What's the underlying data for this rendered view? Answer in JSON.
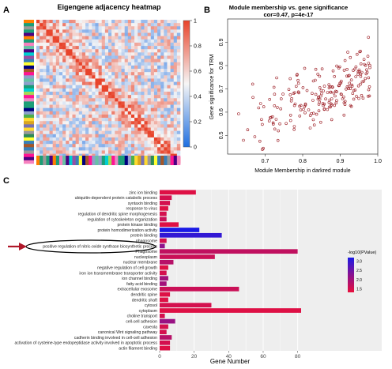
{
  "panels": {
    "a": {
      "letter": "A",
      "title": "Eigengene adjacency heatmap",
      "colorbar_ticks": [
        "1",
        "0.8",
        "0.6",
        "0.4",
        "0.2",
        "0"
      ],
      "colors": {
        "low": "#1f6fe0",
        "mid": "#f4f4f4",
        "high": "#e8432a"
      }
    },
    "b": {
      "letter": "B",
      "title": "Module membership vs. gene significance",
      "subtitle": "cor=0.47, p=4e-17",
      "xlabel": "Module Membership in darkred module",
      "ylabel": "Gene significance for TRM",
      "point_color": "#9b1b22"
    },
    "c": {
      "letter": "C",
      "xlabel": "Gene Number",
      "legend_title": "-log10(PValue)",
      "legend_ticks": [
        "3.0",
        "2.5",
        "2.0",
        "1.5"
      ],
      "arrow_color": "#b0182a"
    }
  },
  "chart_data": [
    {
      "type": "heatmap",
      "title": "Eigengene adjacency heatmap",
      "value_range": [
        0,
        1
      ],
      "colorbar_ticks": [
        1,
        0.8,
        0.6,
        0.4,
        0.2,
        0
      ],
      "diagonal": "high adjacency (1) along the main diagonal"
    },
    {
      "type": "scatter",
      "title": "Module membership vs. gene significance",
      "subtitle": "cor=0.47, p=4e-17",
      "xlabel": "Module Membership in darkred module",
      "ylabel": "Gene significance for TRM",
      "xlim": [
        0.6,
        1.0
      ],
      "ylim": [
        0.42,
        1.0
      ],
      "xticks": [
        0.7,
        0.8,
        0.9,
        1.0
      ],
      "yticks": [
        0.5,
        0.6,
        0.7,
        0.8,
        0.9
      ],
      "correlation": 0.47,
      "p_value": "4e-17"
    },
    {
      "type": "bar",
      "orientation": "horizontal",
      "xlabel": "Gene Number",
      "xlim": [
        0,
        82
      ],
      "xticks": [
        0,
        20,
        40,
        60,
        80
      ],
      "color_scale": {
        "title": "-log10(PValue)",
        "min": 1.3,
        "max": 3.2,
        "low_color": "#e8103c",
        "high_color": "#1a1ae6"
      },
      "highlighted": "positive regulation of nitric-oxide synthase biosynthetic process",
      "categories": [
        "zinc ion binding",
        "ubiquitin-dependent protein catabolic process",
        "syntaxin binding",
        "response to virus",
        "regulation of dendritic spine morphogenesis",
        "regulation of cytoskeleton organization",
        "protein kinase binding",
        "protein homodimerization activity",
        "protein binding",
        "phagosome",
        "positive regulation of nitric-oxide synthase biosynthetic process",
        "Phagosome",
        "nucleoplasm",
        "nuclear membrane",
        "negative regulation of cell growth",
        "iron ion transmembrane transporter activity",
        "ion channel binding",
        "fatty acid binding",
        "extracellular exosome",
        "dendritic spine",
        "dendritic shaft",
        "cytosol",
        "cytoplasm",
        "choline transport",
        "cell-cell adhesion",
        "caveola",
        "canonical Wnt signaling pathway",
        "cadherin binding involved in cell-cell adhesion",
        "activation of cysteine-type endopeptidase activity involved in apoptotic process",
        "actin filament binding"
      ],
      "values": [
        21,
        7,
        6,
        5,
        4,
        4,
        11,
        23,
        36,
        4,
        3,
        80,
        32,
        8,
        5,
        4,
        5,
        4,
        46,
        6,
        5,
        30,
        82,
        3,
        9,
        5,
        4,
        7,
        6,
        6
      ],
      "neg_log10_p": [
        1.4,
        1.5,
        1.5,
        1.4,
        1.5,
        1.6,
        1.4,
        3.2,
        3.0,
        1.5,
        2.2,
        1.7,
        1.6,
        1.8,
        1.4,
        1.5,
        2.0,
        2.0,
        1.6,
        1.4,
        1.4,
        1.5,
        1.4,
        1.5,
        2.1,
        1.5,
        1.5,
        1.8,
        1.5,
        1.4
      ]
    }
  ]
}
